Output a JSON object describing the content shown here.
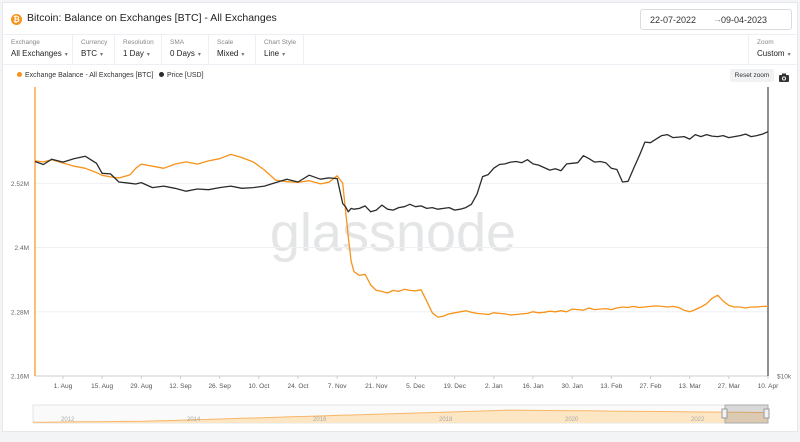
{
  "header": {
    "title": "Bitcoin: Balance on Exchanges [BTC] - All Exchanges",
    "date_from": "22-07-2022",
    "date_arrow": "→",
    "date_to": "09-04-2023",
    "coin_icon": "bitcoin-icon"
  },
  "controls": [
    {
      "label": "Exchange",
      "value": "All Exchanges"
    },
    {
      "label": "Currency",
      "value": "BTC"
    },
    {
      "label": "Resolution",
      "value": "1 Day"
    },
    {
      "label": "SMA",
      "value": "0 Days"
    },
    {
      "label": "Scale",
      "value": "Mixed"
    },
    {
      "label": "Chart Style",
      "value": "Line"
    }
  ],
  "zoom": {
    "label": "Zoom",
    "value": "Custom"
  },
  "toolbar": {
    "reset_label": "Reset zoom",
    "camera_icon": "camera-icon"
  },
  "colors": {
    "balance": "#f7931a",
    "price": "#2b2b2b",
    "navigator": "#f7b668"
  },
  "chart_data": {
    "type": "line",
    "watermark": "glassnode",
    "legend": [
      {
        "name": "Exchange Balance - All Exchanges [BTC]",
        "color": "#f7931a"
      },
      {
        "name": "Price [USD]",
        "color": "#2b2b2b"
      }
    ],
    "legend_position": "top-left",
    "y_left": {
      "ticks": [
        2160000,
        2280000,
        2400000,
        2520000
      ],
      "labels": [
        "2.16M",
        "2.28M",
        "2.4M",
        "2.52M"
      ],
      "range": [
        2160000,
        2700000
      ]
    },
    "y_right": {
      "labels": [
        "$10k"
      ],
      "scale": "log"
    },
    "x_ticks": [
      "1. Aug",
      "15. Aug",
      "29. Aug",
      "12. Sep",
      "26. Sep",
      "10. Oct",
      "24. Oct",
      "7. Nov",
      "21. Nov",
      "5. Dec",
      "19. Dec",
      "2. Jan",
      "16. Jan",
      "30. Jan",
      "13. Feb",
      "27. Feb",
      "13. Mar",
      "27. Mar",
      "10. Apr"
    ],
    "x_range": [
      "2022-07-22",
      "2023-04-09"
    ],
    "series": [
      {
        "name": "Exchange Balance - All Exchanges [BTC]",
        "axis": "left",
        "x": [
          0,
          3,
          6,
          10,
          14,
          18,
          22,
          24,
          27,
          30,
          34,
          36,
          38,
          42,
          46,
          50,
          54,
          58,
          62,
          66,
          70,
          74,
          78,
          82,
          86,
          90,
          94,
          98,
          102,
          105,
          108,
          110,
          111,
          112,
          113,
          114,
          116,
          118,
          120,
          122,
          124,
          126,
          128,
          130,
          132,
          134,
          136,
          138,
          140,
          142,
          144,
          146,
          148,
          150,
          152,
          154,
          156,
          158,
          160,
          162,
          164,
          166,
          168,
          170,
          172,
          174,
          176,
          178,
          180,
          182,
          184,
          186,
          188,
          190,
          192,
          194,
          196,
          198,
          200,
          202,
          204,
          206,
          208,
          210,
          212,
          214,
          216,
          218,
          220,
          222,
          224,
          226,
          228,
          230,
          232,
          234,
          236,
          238,
          240,
          242,
          244,
          246,
          248,
          250,
          252,
          254,
          256,
          258,
          260,
          262
        ],
        "y": [
          2562000,
          2560000,
          2564000,
          2558000,
          2552000,
          2548000,
          2540000,
          2535000,
          2532000,
          2530000,
          2536000,
          2548000,
          2556000,
          2552000,
          2548000,
          2556000,
          2560000,
          2556000,
          2562000,
          2566000,
          2574000,
          2568000,
          2560000,
          2545000,
          2526000,
          2523000,
          2522000,
          2525000,
          2519000,
          2522000,
          2534000,
          2520000,
          2470000,
          2420000,
          2375000,
          2355000,
          2348000,
          2350000,
          2330000,
          2320000,
          2318000,
          2315000,
          2320000,
          2318000,
          2322000,
          2320000,
          2319000,
          2321000,
          2300000,
          2278000,
          2270000,
          2272000,
          2276000,
          2278000,
          2280000,
          2282000,
          2279000,
          2277000,
          2276000,
          2275000,
          2278000,
          2277000,
          2276000,
          2274000,
          2275000,
          2276000,
          2277000,
          2280000,
          2278000,
          2279000,
          2281000,
          2280000,
          2282000,
          2280000,
          2285000,
          2284000,
          2283000,
          2287000,
          2284000,
          2285000,
          2286000,
          2284000,
          2287000,
          2289000,
          2288000,
          2290000,
          2288000,
          2289000,
          2290000,
          2291000,
          2290000,
          2289000,
          2290000,
          2288000,
          2283000,
          2280000,
          2284000,
          2289000,
          2295000,
          2305000,
          2311000,
          2300000,
          2292000,
          2289000,
          2289000,
          2287000,
          2289000,
          2289000,
          2290000,
          2290000
        ]
      },
      {
        "name": "Price [USD]",
        "axis": "right",
        "x": [
          0,
          3,
          6,
          10,
          14,
          18,
          22,
          24,
          27,
          30,
          34,
          36,
          38,
          42,
          46,
          50,
          54,
          58,
          62,
          66,
          70,
          74,
          78,
          82,
          86,
          90,
          94,
          98,
          102,
          105,
          108,
          110,
          111,
          112,
          113,
          114,
          116,
          118,
          120,
          122,
          124,
          126,
          128,
          130,
          132,
          134,
          136,
          138,
          140,
          142,
          144,
          146,
          148,
          150,
          152,
          154,
          156,
          158,
          160,
          162,
          164,
          166,
          168,
          170,
          172,
          174,
          176,
          178,
          180,
          182,
          184,
          186,
          188,
          190,
          192,
          194,
          196,
          198,
          200,
          202,
          204,
          206,
          208,
          210,
          212,
          214,
          216,
          218,
          220,
          222,
          224,
          226,
          228,
          230,
          232,
          234,
          236,
          238,
          240,
          242,
          244,
          246,
          248,
          250,
          252,
          254,
          256,
          258,
          260,
          262
        ],
        "y": [
          23400,
          22900,
          23800,
          23300,
          23900,
          24300,
          23100,
          21500,
          21400,
          20200,
          20000,
          19900,
          20100,
          19400,
          19600,
          19300,
          18900,
          19200,
          19100,
          19400,
          19600,
          19300,
          19400,
          19600,
          20100,
          20600,
          20200,
          21200,
          20600,
          20800,
          20700,
          17300,
          16900,
          16300,
          16700,
          16600,
          16700,
          17000,
          16300,
          16500,
          17100,
          16600,
          16500,
          16800,
          16900,
          17200,
          16900,
          17000,
          16700,
          16800,
          16600,
          16700,
          16800,
          16500,
          16600,
          16800,
          17200,
          18500,
          21000,
          21300,
          22300,
          22900,
          23000,
          23300,
          23400,
          23200,
          23700,
          23000,
          22800,
          22400,
          22000,
          22200,
          21900,
          23000,
          23100,
          23200,
          24400,
          23900,
          23300,
          23400,
          23200,
          22300,
          22100,
          20200,
          20300,
          22300,
          24400,
          26900,
          26800,
          27500,
          28200,
          28400,
          27800,
          27900,
          28000,
          27500,
          28400,
          28000,
          28400,
          28100,
          28000,
          28200,
          27800,
          28000,
          28200,
          28500,
          28000,
          28200,
          28500,
          29000
        ]
      }
    ],
    "navigator": {
      "labels": [
        "2012",
        "2014",
        "2016",
        "2018",
        "2020",
        "2022"
      ]
    }
  }
}
